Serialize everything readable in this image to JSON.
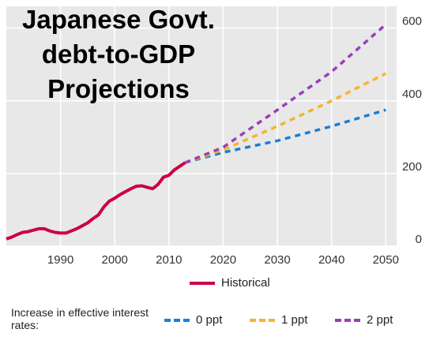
{
  "chart_data": {
    "type": "line",
    "title_lines": [
      "Japanese Govt.",
      "debt-to-GDP",
      "Projections"
    ],
    "xlabel": "",
    "ylabel": "",
    "xlim": [
      1980,
      2052
    ],
    "ylim": [
      0,
      660
    ],
    "x_ticks": [
      1990,
      2000,
      2010,
      2020,
      2030,
      2040,
      2050
    ],
    "y_ticks": [
      0,
      200,
      400,
      600
    ],
    "grid": true,
    "series": [
      {
        "name": "Historical",
        "style": "solid",
        "color": "#cc0044",
        "x": [
          1980,
          1981,
          1982,
          1983,
          1984,
          1985,
          1986,
          1987,
          1988,
          1989,
          1990,
          1991,
          1992,
          1993,
          1994,
          1995,
          1996,
          1997,
          1998,
          1999,
          2000,
          2001,
          2002,
          2003,
          2004,
          2005,
          2006,
          2007,
          2008,
          2009,
          2010,
          2011,
          2012,
          2013
        ],
        "y": [
          20,
          25,
          32,
          38,
          40,
          44,
          48,
          48,
          42,
          38,
          36,
          36,
          42,
          48,
          56,
          64,
          76,
          86,
          108,
          124,
          132,
          142,
          150,
          158,
          165,
          166,
          162,
          158,
          170,
          190,
          195,
          210,
          220,
          230
        ]
      },
      {
        "name": "0 ppt",
        "style": "dashed",
        "color": "#1a7fd6",
        "x": [
          2013,
          2020,
          2030,
          2040,
          2050
        ],
        "y": [
          230,
          258,
          290,
          330,
          375
        ]
      },
      {
        "name": "1 ppt",
        "style": "dashed",
        "color": "#f7b32b",
        "x": [
          2013,
          2020,
          2030,
          2040,
          2050
        ],
        "y": [
          230,
          265,
          330,
          400,
          475
        ]
      },
      {
        "name": "2 ppt",
        "style": "dashed",
        "color": "#9b3fb5",
        "x": [
          2013,
          2020,
          2030,
          2040,
          2050
        ],
        "y": [
          230,
          272,
          375,
          480,
          610
        ]
      }
    ]
  },
  "legend": {
    "historical_label": "Historical",
    "note": "Increase in effective interest rates:",
    "items": [
      {
        "label": "0 ppt",
        "color": "#1a7fd6"
      },
      {
        "label": "1 ppt",
        "color": "#f7b32b"
      },
      {
        "label": "2 ppt",
        "color": "#9b3fb5"
      }
    ]
  },
  "colors": {
    "plot_background": "#e8e8e8",
    "gridline": "#ffffff",
    "axis_text": "#333333"
  }
}
